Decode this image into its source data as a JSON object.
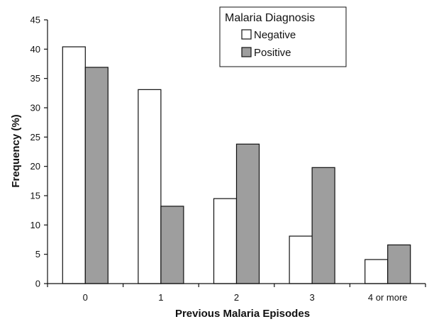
{
  "chart_data": {
    "type": "bar",
    "xlabel": "Previous Malaria Episodes",
    "ylabel": "Frequency (%)",
    "categories": [
      "0",
      "1",
      "2",
      "3",
      "4 or more"
    ],
    "ylim": [
      0,
      45
    ],
    "yticks": [
      0,
      5,
      10,
      15,
      20,
      25,
      30,
      35,
      40,
      45
    ],
    "grid": false,
    "legend": {
      "title": "Malaria Diagnosis",
      "placement": "top-center"
    },
    "series": [
      {
        "name": "Negative",
        "color": "#ffffff",
        "values": [
          40.4,
          33.1,
          14.5,
          8.1,
          4.1
        ]
      },
      {
        "name": "Positive",
        "color": "#9e9e9e",
        "values": [
          36.9,
          13.2,
          23.8,
          19.8,
          6.6
        ]
      }
    ]
  }
}
